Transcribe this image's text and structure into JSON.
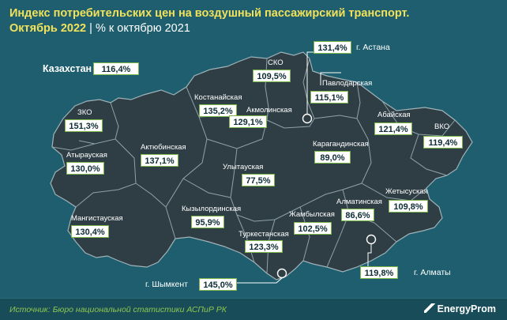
{
  "title": {
    "line1": "Индекс потребительских цен на воздушный пассажирский транспорт.",
    "date": "Октябрь 2022",
    "separator": "|",
    "basis": "% к октябрю 2021"
  },
  "country": {
    "label": "Казахстан",
    "value": "116,4%"
  },
  "regions": {
    "zko": {
      "name": "ЗКО",
      "value": "151,3%"
    },
    "atyrau": {
      "name": "Атырауская",
      "value": "130,0%"
    },
    "mangistau": {
      "name": "Мангистауская",
      "value": "130,4%"
    },
    "aktobe": {
      "name": "Актюбинская",
      "value": "137,1%"
    },
    "kostanay": {
      "name": "Костанайская",
      "value": "135,2%"
    },
    "sko": {
      "name": "СКО",
      "value": "109,5%"
    },
    "akmola": {
      "name": "Акмолинская",
      "value": "129,1%"
    },
    "pavlodar": {
      "name": "Павлодарская",
      "value": "115,1%"
    },
    "karaganda": {
      "name": "Карагандинская",
      "value": "89,0%"
    },
    "abai": {
      "name": "Абайская",
      "value": "121,4%"
    },
    "vko": {
      "name": "ВКО",
      "value": "119,4%"
    },
    "ulytau": {
      "name": "Улытауская",
      "value": "77,5%"
    },
    "kyzylorda": {
      "name": "Кызылординская",
      "value": "95,9%"
    },
    "turkestan": {
      "name": "Туркестанская",
      "value": "123,3%"
    },
    "zhambyl": {
      "name": "Жамбылская",
      "value": "102,5%"
    },
    "almaty_reg": {
      "name": "Алматинская",
      "value": "86,6%"
    },
    "zhetysu": {
      "name": "Жетысуская",
      "value": "109,8%"
    }
  },
  "cities": {
    "astana": {
      "name": "г. Астана",
      "value": "131,4%"
    },
    "almaty": {
      "name": "г. Алматы",
      "value": "119,8%"
    },
    "shymkent": {
      "name": "г. Шымкент",
      "value": "145,0%"
    }
  },
  "footer": {
    "source": "Источник: Бюро национальной статистики АСПиР РК",
    "brand": "EnergyProm"
  },
  "colors": {
    "background": "#1e5e6e",
    "land": "#2f3e45",
    "border": "#8fa2a8",
    "title": "#f2e25a",
    "accent": "#7ab648"
  }
}
